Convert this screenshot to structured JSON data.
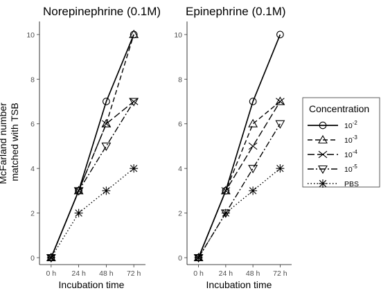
{
  "chart_data": [
    {
      "type": "line",
      "title": "Norepinephrine (0.1M)",
      "xlabel": "Incubation time",
      "ylabel": [
        "McFarland number",
        "matched with TSB"
      ],
      "categories": [
        "0 h",
        "24 h",
        "48 h",
        "72 h"
      ],
      "ylim": [
        0,
        10.4
      ],
      "yticks": [
        "0",
        "2",
        "4",
        "6",
        "8",
        "10"
      ],
      "grid": false,
      "series": [
        {
          "name": "10-2",
          "values": [
            0,
            3,
            7,
            10
          ]
        },
        {
          "name": "10-3",
          "values": [
            0,
            3,
            6,
            10
          ]
        },
        {
          "name": "10-4",
          "values": [
            0,
            3,
            6,
            7
          ]
        },
        {
          "name": "10-5",
          "values": [
            0,
            3,
            5,
            7
          ]
        },
        {
          "name": "PBS",
          "values": [
            0,
            2,
            3,
            4
          ]
        }
      ]
    },
    {
      "type": "line",
      "title": "Epinephrine (0.1M)",
      "xlabel": "Incubation time",
      "ylabel": "",
      "categories": [
        "0 h",
        "24 h",
        "48 h",
        "72 h"
      ],
      "ylim": [
        0,
        10.4
      ],
      "yticks": [
        "0",
        "2",
        "4",
        "6",
        "8",
        "10"
      ],
      "grid": false,
      "series": [
        {
          "name": "10-2",
          "values": [
            0,
            3,
            7,
            10
          ]
        },
        {
          "name": "10-3",
          "values": [
            0,
            3,
            6,
            7
          ]
        },
        {
          "name": "10-4",
          "values": [
            0,
            3,
            5,
            7
          ]
        },
        {
          "name": "10-5",
          "values": [
            0,
            2,
            4,
            6
          ]
        },
        {
          "name": "PBS",
          "values": [
            0,
            2,
            3,
            4
          ]
        }
      ]
    }
  ],
  "legend": {
    "title": "Concentration",
    "placement": "right",
    "items": [
      {
        "key": "10-2",
        "base": "10",
        "exp": "-2",
        "line": "solid",
        "marker": "circle"
      },
      {
        "key": "10-3",
        "base": "10",
        "exp": "-3",
        "line": "dashed",
        "marker": "triangle-up"
      },
      {
        "key": "10-4",
        "base": "10",
        "exp": "-4",
        "line": "longdash",
        "marker": "x"
      },
      {
        "key": "10-5",
        "base": "10",
        "exp": "-5",
        "line": "dotdash",
        "marker": "triangle-down"
      },
      {
        "key": "PBS",
        "label": "PBS",
        "line": "dotted",
        "marker": "asterisk"
      }
    ]
  }
}
